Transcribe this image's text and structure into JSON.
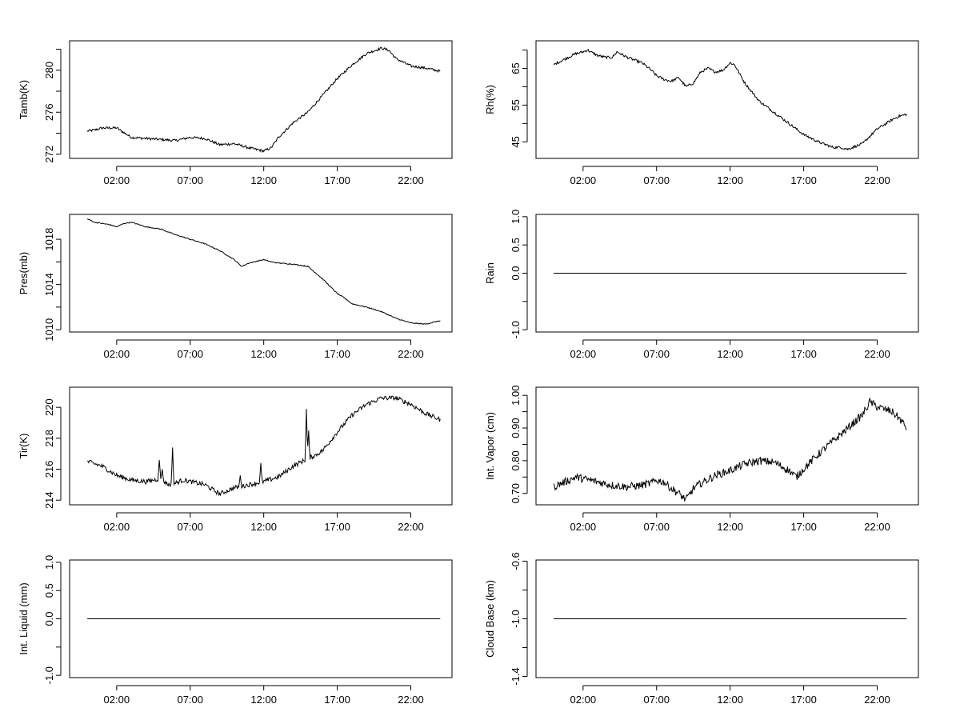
{
  "chart_data": [
    {
      "type": "line",
      "ylabel": "Tamb(K)",
      "xlabel": "",
      "xlim": [
        -1.2,
        24.8
      ],
      "ylim": [
        271.6,
        282.8
      ],
      "xticks": [
        2,
        7,
        12,
        17,
        22
      ],
      "xtick_labels": [
        "02:00",
        "07:00",
        "12:00",
        "17:00",
        "22:00"
      ],
      "yticks": [
        272,
        274,
        276,
        278,
        280,
        282
      ],
      "ytick_labels": [
        "272",
        "",
        "276",
        "",
        "280",
        ""
      ],
      "noise": 0.12,
      "series": [
        {
          "name": "Tamb",
          "x": [
            0,
            0.5,
            1,
            2,
            3,
            4,
            5,
            6,
            7,
            8,
            9,
            10,
            11,
            12,
            12.5,
            13,
            14,
            15,
            16,
            17,
            18,
            19,
            20,
            20.5,
            21,
            22,
            23,
            24
          ],
          "y": [
            274.2,
            274.3,
            274.5,
            274.5,
            273.6,
            273.5,
            273.4,
            273.3,
            273.6,
            273.5,
            272.9,
            273.0,
            272.6,
            272.3,
            272.6,
            273.6,
            275.0,
            276.0,
            277.6,
            279.2,
            280.5,
            281.6,
            282.1,
            281.9,
            281.1,
            280.4,
            280.2,
            279.9
          ]
        }
      ]
    },
    {
      "type": "line",
      "ylabel": "Rh(%)",
      "xlabel": "",
      "xlim": [
        -1.2,
        24.8
      ],
      "ylim": [
        40.5,
        72.5
      ],
      "xticks": [
        2,
        7,
        12,
        17,
        22
      ],
      "xtick_labels": [
        "02:00",
        "07:00",
        "12:00",
        "17:00",
        "22:00"
      ],
      "yticks": [
        45,
        50,
        55,
        60,
        65,
        70
      ],
      "ytick_labels": [
        "45",
        "",
        "55",
        "",
        "65",
        ""
      ],
      "noise": 0.35,
      "series": [
        {
          "name": "Rh",
          "x": [
            0,
            0.5,
            1,
            1.5,
            2,
            2.3,
            2.5,
            3,
            3.5,
            4,
            4.3,
            5,
            6,
            6.5,
            7,
            7.5,
            8,
            8.5,
            9,
            9.5,
            10,
            10.5,
            11,
            11.5,
            12,
            12.3,
            13,
            14,
            15,
            16,
            17,
            17.5,
            18,
            19,
            19.5,
            20,
            21,
            22,
            23,
            23.5,
            24
          ],
          "y": [
            66,
            67,
            68,
            69,
            69.5,
            70,
            69.5,
            68.5,
            68,
            68,
            69.5,
            68,
            66.5,
            65,
            63,
            62,
            61.5,
            62.5,
            60,
            61,
            64,
            65,
            64,
            64.5,
            66.5,
            66,
            61,
            56,
            53,
            50,
            47,
            46,
            45,
            43.5,
            43.5,
            43,
            44.5,
            48.5,
            51,
            52,
            52.5
          ]
        }
      ]
    },
    {
      "type": "line",
      "ylabel": "Pres(mb)",
      "xlabel": "",
      "xlim": [
        -1.2,
        24.8
      ],
      "ylim": [
        1009.8,
        1020.2
      ],
      "xticks": [
        2,
        7,
        12,
        17,
        22
      ],
      "xtick_labels": [
        "02:00",
        "07:00",
        "12:00",
        "17:00",
        "22:00"
      ],
      "yticks": [
        1010,
        1012,
        1014,
        1016,
        1018
      ],
      "ytick_labels": [
        "1010",
        "",
        "1014",
        "",
        "1018"
      ],
      "noise": 0.04,
      "series": [
        {
          "name": "Pres",
          "x": [
            0,
            0.5,
            1,
            1.5,
            2,
            2.5,
            3,
            4,
            5,
            6,
            7,
            8,
            9,
            10,
            10.5,
            11,
            12,
            12.5,
            13,
            14,
            15,
            16,
            17,
            17.5,
            18,
            19,
            20,
            21,
            22,
            23,
            24
          ],
          "y": [
            1019.8,
            1019.5,
            1019.4,
            1019.3,
            1019.1,
            1019.4,
            1019.5,
            1019.1,
            1018.9,
            1018.4,
            1018.0,
            1017.6,
            1017.0,
            1016.2,
            1015.6,
            1015.9,
            1016.2,
            1016.0,
            1015.9,
            1015.8,
            1015.6,
            1014.5,
            1013.2,
            1012.8,
            1012.3,
            1012.0,
            1011.6,
            1011.0,
            1010.6,
            1010.5,
            1010.8
          ]
        }
      ]
    },
    {
      "type": "line",
      "ylabel": "Rain",
      "xlabel": "",
      "xlim": [
        -1.2,
        24.8
      ],
      "ylim": [
        -1.04,
        1.04
      ],
      "xticks": [
        2,
        7,
        12,
        17,
        22
      ],
      "xtick_labels": [
        "02:00",
        "07:00",
        "12:00",
        "17:00",
        "22:00"
      ],
      "yticks": [
        -1.0,
        -0.5,
        0.0,
        0.5,
        1.0
      ],
      "ytick_labels": [
        "-1.0",
        "",
        "0.0",
        "0.5",
        "1.0"
      ],
      "noise": 0,
      "series": [
        {
          "name": "Rain",
          "x": [
            0,
            24
          ],
          "y": [
            0,
            0
          ]
        }
      ]
    },
    {
      "type": "line",
      "ylabel": "Tir(K)",
      "xlabel": "",
      "xlim": [
        -1.2,
        24.8
      ],
      "ylim": [
        213.7,
        221.3
      ],
      "xticks": [
        2,
        7,
        12,
        17,
        22
      ],
      "xtick_labels": [
        "02:00",
        "07:00",
        "12:00",
        "17:00",
        "22:00"
      ],
      "yticks": [
        214,
        216,
        218,
        220
      ],
      "ytick_labels": [
        "214",
        "216",
        "218",
        "220"
      ],
      "noise": 0.15,
      "series": [
        {
          "name": "Tir",
          "x": [
            0,
            1,
            2,
            3,
            4,
            5,
            5.5,
            6,
            6.5,
            7,
            8,
            9,
            10,
            11,
            12,
            13,
            14,
            15,
            15.5,
            16,
            17,
            18,
            19,
            20,
            21,
            22,
            23,
            24
          ],
          "y": [
            216.5,
            216.2,
            215.6,
            215.3,
            215.2,
            215.4,
            215.0,
            215.1,
            215.3,
            215.2,
            215.0,
            214.4,
            214.8,
            215.0,
            215.2,
            215.5,
            216.2,
            216.7,
            216.9,
            217.2,
            218.4,
            219.5,
            220.2,
            220.6,
            220.6,
            220.2,
            219.6,
            219.2
          ]
        }
      ],
      "spikes": [
        {
          "x": 4.9,
          "y": 216.6
        },
        {
          "x": 5.1,
          "y": 216.0
        },
        {
          "x": 5.8,
          "y": 217.4
        },
        {
          "x": 10.4,
          "y": 215.6
        },
        {
          "x": 11.8,
          "y": 216.4
        },
        {
          "x": 14.9,
          "y": 219.9
        },
        {
          "x": 15.05,
          "y": 218.5
        }
      ]
    },
    {
      "type": "line",
      "ylabel": "Int. Vapor (cm)",
      "xlabel": "",
      "xlim": [
        -1.2,
        24.8
      ],
      "ylim": [
        0.665,
        1.025
      ],
      "xticks": [
        2,
        7,
        12,
        17,
        22
      ],
      "xtick_labels": [
        "02:00",
        "07:00",
        "12:00",
        "17:00",
        "22:00"
      ],
      "yticks": [
        0.7,
        0.75,
        0.8,
        0.85,
        0.9,
        0.95,
        1.0
      ],
      "ytick_labels": [
        "0.70",
        "",
        "0.80",
        "",
        "0.90",
        "",
        "1.00"
      ],
      "noise": 0.012,
      "series": [
        {
          "name": "Int. Vapor",
          "x": [
            0,
            0.5,
            1,
            1.5,
            2,
            3,
            4,
            5,
            6,
            6.5,
            7,
            7.5,
            8,
            8.5,
            9,
            9.5,
            10,
            11,
            12,
            13,
            14,
            15,
            16,
            16.5,
            17,
            18,
            19,
            20,
            20.5,
            21,
            21.5,
            22,
            23,
            23.5,
            24
          ],
          "y": [
            0.72,
            0.73,
            0.74,
            0.75,
            0.745,
            0.735,
            0.725,
            0.72,
            0.725,
            0.73,
            0.74,
            0.735,
            0.715,
            0.7,
            0.68,
            0.715,
            0.73,
            0.755,
            0.77,
            0.79,
            0.8,
            0.795,
            0.77,
            0.75,
            0.775,
            0.82,
            0.86,
            0.9,
            0.92,
            0.94,
            0.98,
            0.965,
            0.95,
            0.93,
            0.9
          ]
        }
      ]
    },
    {
      "type": "line",
      "ylabel": "Int. Liquid (mm)",
      "xlabel": "",
      "xlim": [
        -1.2,
        24.8
      ],
      "ylim": [
        -1.04,
        1.04
      ],
      "xticks": [
        2,
        7,
        12,
        17,
        22
      ],
      "xtick_labels": [
        "02:00",
        "07:00",
        "12:00",
        "17:00",
        "22:00"
      ],
      "yticks": [
        -1.0,
        -0.5,
        0.0,
        0.5,
        1.0
      ],
      "ytick_labels": [
        "-1.0",
        "",
        "0.0",
        "0.5",
        "1.0"
      ],
      "noise": 0,
      "series": [
        {
          "name": "Int. Liquid",
          "x": [
            0,
            24
          ],
          "y": [
            0,
            0
          ]
        }
      ]
    },
    {
      "type": "line",
      "ylabel": "Cloud Base (km)",
      "xlabel": "",
      "xlim": [
        -1.2,
        24.8
      ],
      "ylim": [
        -1.408,
        -0.592
      ],
      "xticks": [
        2,
        7,
        12,
        17,
        22
      ],
      "xtick_labels": [
        "02:00",
        "07:00",
        "12:00",
        "17:00",
        "22:00"
      ],
      "yticks": [
        -1.4,
        -1.2,
        -1.0,
        -0.8,
        -0.6
      ],
      "ytick_labels": [
        "-1.4",
        "",
        "-1.0",
        "",
        "-0.6"
      ],
      "noise": 0,
      "series": [
        {
          "name": "Cloud Base",
          "x": [
            0,
            24
          ],
          "y": [
            -1.0,
            -1.0
          ]
        }
      ]
    }
  ]
}
